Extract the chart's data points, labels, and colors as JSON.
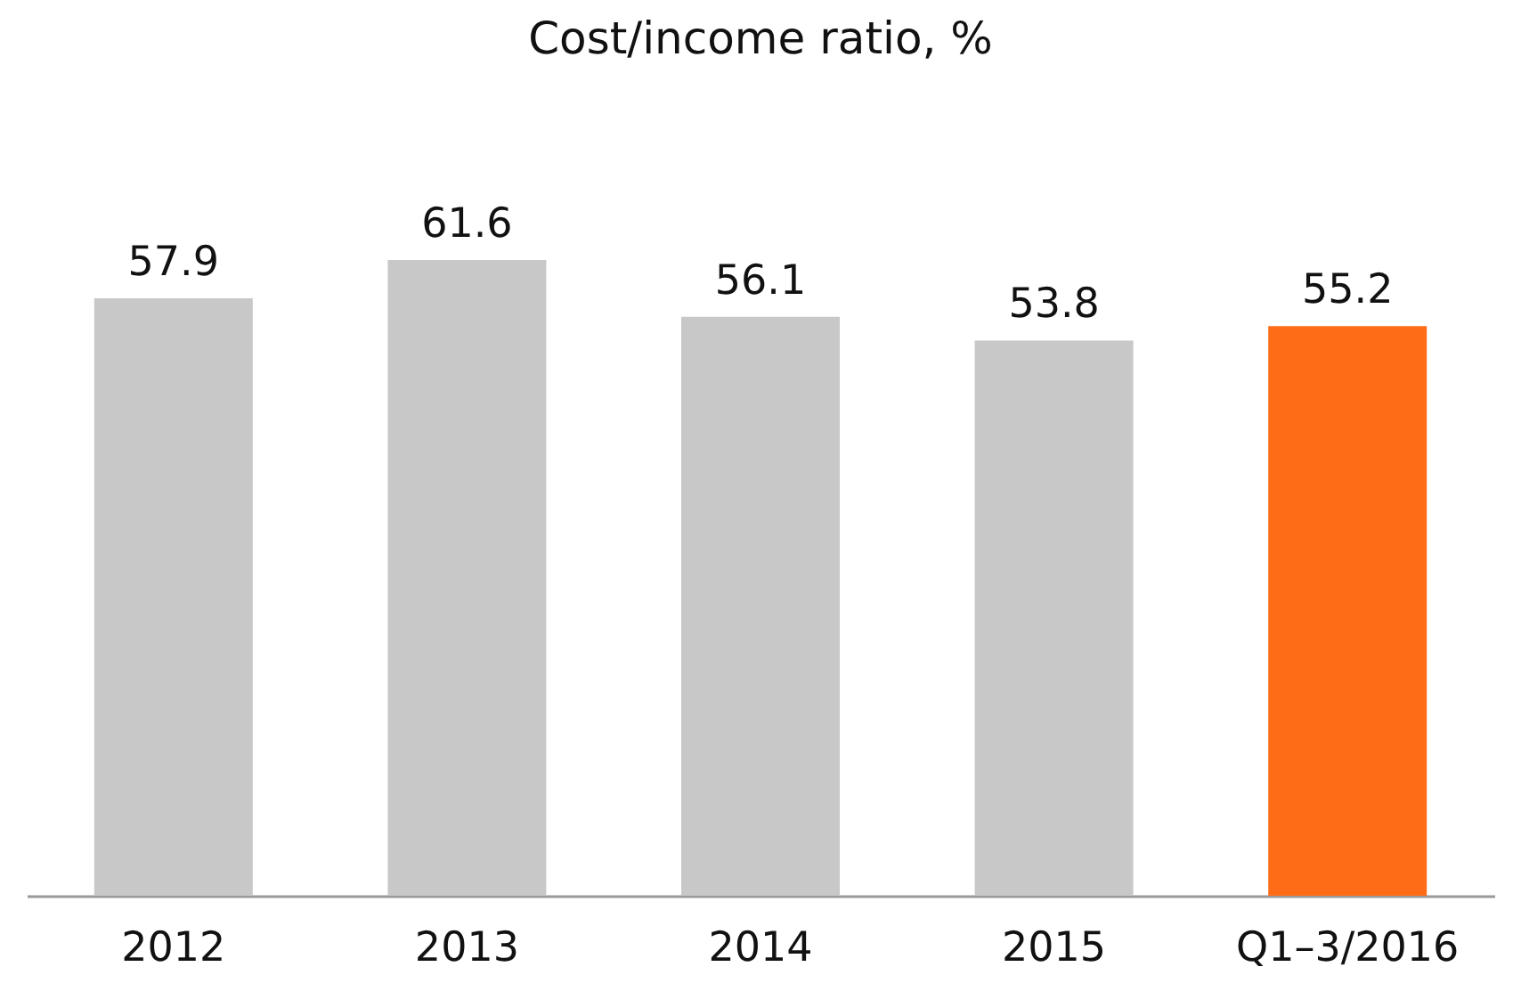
{
  "chart_data": {
    "type": "bar",
    "title": "Cost/income ratio, %",
    "categories": [
      "2012",
      "2013",
      "2014",
      "2015",
      "Q1–3/2016"
    ],
    "values": [
      57.9,
      61.6,
      56.1,
      53.8,
      55.2
    ],
    "colors": [
      "#c8c8c8",
      "#c8c8c8",
      "#c8c8c8",
      "#c8c8c8",
      "#ff6c17"
    ],
    "data_labels": true,
    "tick_labels": "x"
  }
}
